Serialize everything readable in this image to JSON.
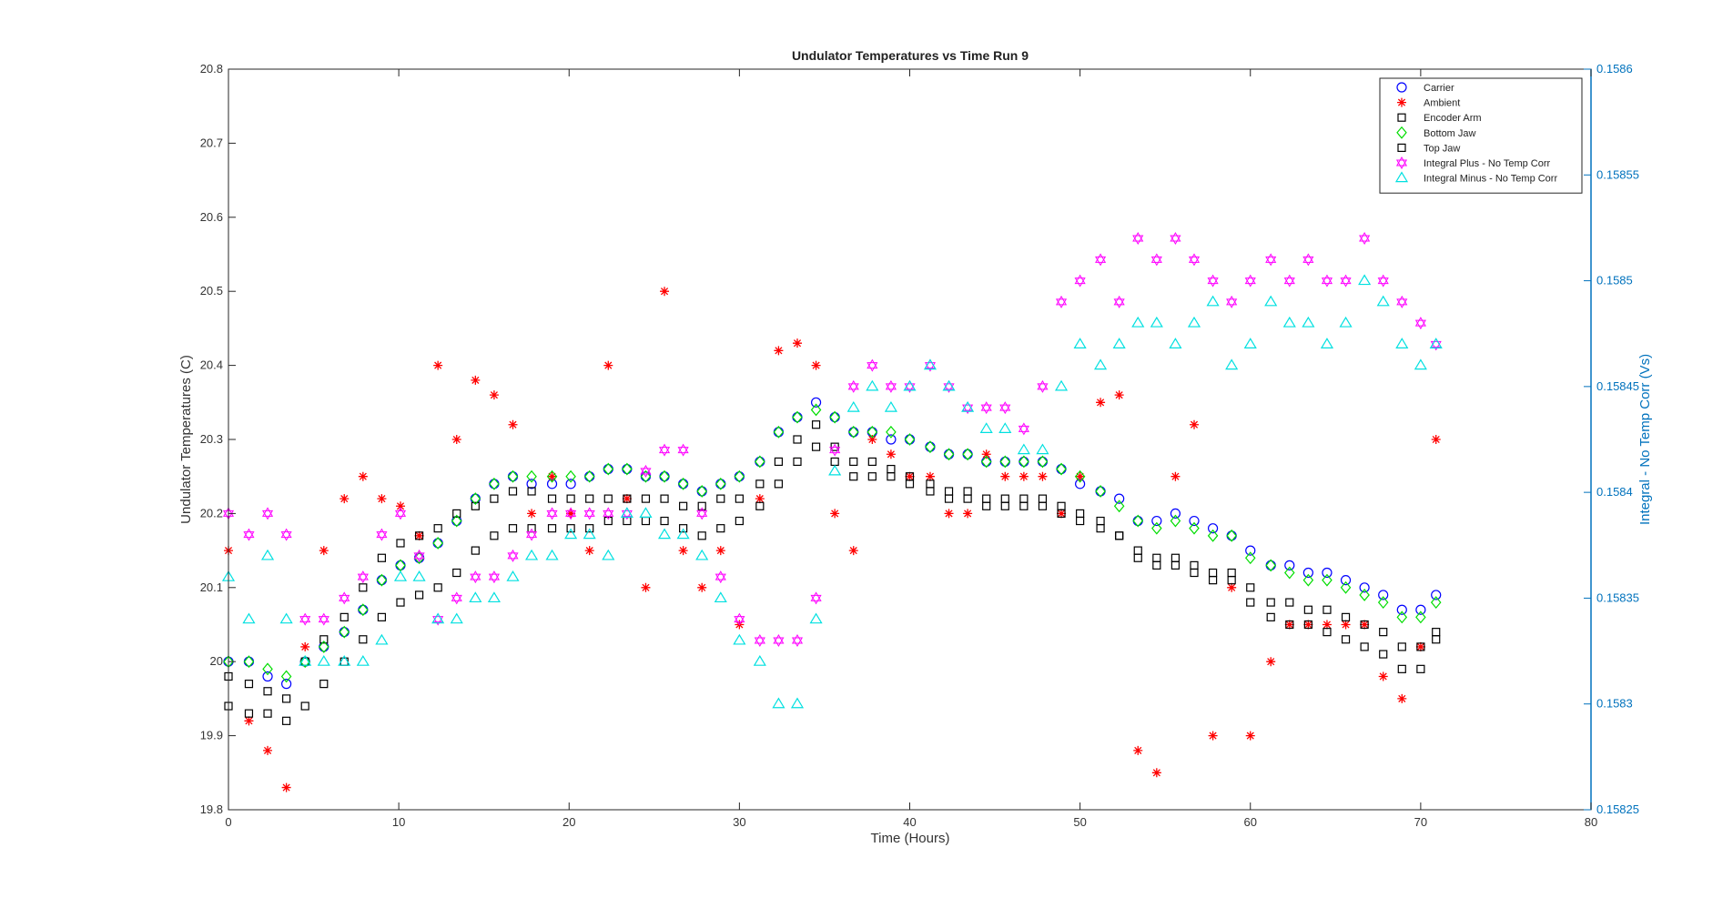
{
  "chart_data": {
    "type": "scatter",
    "title": "Undulator Temperatures vs Time Run 9",
    "xlabel": "Time (Hours)",
    "ylabel": "Undulator Temperatures (C)",
    "ylabel_right": "Integral -  No Temp Corr (Vs)",
    "xlim": [
      0,
      80
    ],
    "ylim": [
      19.8,
      20.8
    ],
    "ylim_right": [
      0.15825,
      0.1586
    ],
    "xticks": [
      "0",
      "10",
      "20",
      "30",
      "40",
      "50",
      "60",
      "70",
      "80"
    ],
    "yticks": [
      "19.8",
      "19.9",
      "20",
      "20.1",
      "20.2",
      "20.3",
      "20.4",
      "20.5",
      "20.6",
      "20.7",
      "20.8"
    ],
    "yticks_right": [
      "0.15825",
      "0.1583",
      "0.15835",
      "0.1584",
      "0.15845",
      "0.1585",
      "0.15855",
      "0.1586"
    ],
    "legend_position": "top-right",
    "grid": false,
    "series": [
      {
        "name": "Carrier",
        "marker": "circle",
        "color": "#0000FF",
        "axis": "left",
        "x": [
          0,
          1.2,
          2.3,
          3.4,
          4.5,
          5.6,
          6.8,
          7.9,
          9.0,
          10.1,
          11.2,
          12.3,
          13.4,
          14.5,
          15.6,
          16.7,
          17.8,
          19.0,
          20.1,
          21.2,
          22.3,
          23.4,
          24.5,
          25.6,
          26.7,
          27.8,
          28.9,
          30.0,
          31.2,
          32.3,
          33.4,
          34.5,
          35.6,
          36.7,
          37.8,
          38.9,
          40.0,
          41.2,
          42.3,
          43.4,
          44.5,
          45.6,
          46.7,
          47.8,
          48.9,
          50.0,
          51.2,
          52.3,
          53.4,
          54.5,
          55.6,
          56.7,
          57.8,
          58.9,
          60.0,
          61.2,
          62.3,
          63.4,
          64.5,
          65.6,
          66.7,
          67.8,
          68.9,
          70.0,
          70.9
        ],
        "y": [
          20.0,
          20.0,
          19.98,
          19.97,
          20.0,
          20.02,
          20.04,
          20.07,
          20.11,
          20.13,
          20.14,
          20.16,
          20.19,
          20.22,
          20.24,
          20.25,
          20.24,
          20.24,
          20.24,
          20.25,
          20.26,
          20.26,
          20.25,
          20.25,
          20.24,
          20.23,
          20.24,
          20.25,
          20.27,
          20.31,
          20.33,
          20.35,
          20.33,
          20.31,
          20.31,
          20.3,
          20.3,
          20.29,
          20.28,
          20.28,
          20.27,
          20.27,
          20.27,
          20.27,
          20.26,
          20.24,
          20.23,
          20.22,
          20.19,
          20.19,
          20.2,
          20.19,
          20.18,
          20.17,
          20.15,
          20.13,
          20.13,
          20.12,
          20.12,
          20.11,
          20.1,
          20.09,
          20.07,
          20.07,
          20.09
        ]
      },
      {
        "name": "Ambient",
        "marker": "star",
        "color": "#FF0000",
        "axis": "left",
        "x": [
          0,
          1.2,
          2.3,
          3.4,
          4.5,
          5.6,
          6.8,
          7.9,
          9.0,
          10.1,
          11.2,
          12.3,
          13.4,
          14.5,
          15.6,
          16.7,
          17.8,
          19.0,
          20.1,
          21.2,
          22.3,
          23.4,
          24.5,
          25.6,
          26.7,
          27.8,
          28.9,
          30.0,
          31.2,
          32.3,
          33.4,
          34.5,
          35.6,
          36.7,
          37.8,
          38.9,
          40.0,
          41.2,
          42.3,
          43.4,
          44.5,
          45.6,
          46.7,
          47.8,
          48.9,
          50.0,
          51.2,
          52.3,
          53.4,
          54.5,
          55.6,
          56.7,
          57.8,
          58.9,
          60.0,
          61.2,
          62.3,
          63.4,
          64.5,
          65.6,
          66.7,
          67.8,
          68.9,
          70.0,
          70.9
        ],
        "y": [
          20.15,
          19.92,
          19.88,
          19.83,
          20.02,
          20.15,
          20.22,
          20.25,
          20.22,
          20.21,
          20.17,
          20.4,
          20.3,
          20.38,
          20.36,
          20.32,
          20.2,
          20.25,
          20.2,
          20.15,
          20.4,
          20.22,
          20.1,
          20.5,
          20.15,
          20.1,
          20.15,
          20.05,
          20.22,
          20.42,
          20.43,
          20.4,
          20.2,
          20.15,
          20.3,
          20.28,
          20.25,
          20.25,
          20.2,
          20.2,
          20.28,
          20.25,
          20.25,
          20.25,
          20.2,
          20.25,
          20.35,
          20.36,
          19.88,
          19.85,
          20.25,
          20.32,
          19.9,
          20.1,
          19.9,
          20.0,
          20.05,
          20.05,
          20.05,
          20.05,
          20.05,
          19.98,
          19.95,
          20.02,
          20.3
        ]
      },
      {
        "name": "Encoder Arm",
        "marker": "square",
        "color": "#000000",
        "axis": "left",
        "x": [
          0,
          1.2,
          2.3,
          3.4,
          4.5,
          5.6,
          6.8,
          7.9,
          9.0,
          10.1,
          11.2,
          12.3,
          13.4,
          14.5,
          15.6,
          16.7,
          17.8,
          19.0,
          20.1,
          21.2,
          22.3,
          23.4,
          24.5,
          25.6,
          26.7,
          27.8,
          28.9,
          30.0,
          31.2,
          32.3,
          33.4,
          34.5,
          35.6,
          36.7,
          37.8,
          38.9,
          40.0,
          41.2,
          42.3,
          43.4,
          44.5,
          45.6,
          46.7,
          47.8,
          48.9,
          50.0,
          51.2,
          52.3,
          53.4,
          54.5,
          55.6,
          56.7,
          57.8,
          58.9,
          60.0,
          61.2,
          62.3,
          63.4,
          64.5,
          65.6,
          66.7,
          67.8,
          68.9,
          70.0,
          70.9
        ],
        "y": [
          19.98,
          19.97,
          19.96,
          19.95,
          20.0,
          20.03,
          20.06,
          20.1,
          20.14,
          20.16,
          20.17,
          20.18,
          20.2,
          20.21,
          20.22,
          20.23,
          20.23,
          20.22,
          20.22,
          20.22,
          20.22,
          20.22,
          20.22,
          20.22,
          20.21,
          20.21,
          20.22,
          20.22,
          20.24,
          20.27,
          20.3,
          20.32,
          20.29,
          20.27,
          20.27,
          20.26,
          20.25,
          20.24,
          20.23,
          20.23,
          20.22,
          20.22,
          20.22,
          20.22,
          20.21,
          20.2,
          20.19,
          20.17,
          20.15,
          20.14,
          20.14,
          20.13,
          20.12,
          20.12,
          20.1,
          20.08,
          20.08,
          20.07,
          20.07,
          20.06,
          20.05,
          20.04,
          20.02,
          20.02,
          20.04
        ]
      },
      {
        "name": "Bottom Jaw",
        "marker": "diamond",
        "color": "#00DD00",
        "axis": "left",
        "x": [
          0,
          1.2,
          2.3,
          3.4,
          4.5,
          5.6,
          6.8,
          7.9,
          9.0,
          10.1,
          11.2,
          12.3,
          13.4,
          14.5,
          15.6,
          16.7,
          17.8,
          19.0,
          20.1,
          21.2,
          22.3,
          23.4,
          24.5,
          25.6,
          26.7,
          27.8,
          28.9,
          30.0,
          31.2,
          32.3,
          33.4,
          34.5,
          35.6,
          36.7,
          37.8,
          38.9,
          40.0,
          41.2,
          42.3,
          43.4,
          44.5,
          45.6,
          46.7,
          47.8,
          48.9,
          50.0,
          51.2,
          52.3,
          53.4,
          54.5,
          55.6,
          56.7,
          57.8,
          58.9,
          60.0,
          61.2,
          62.3,
          63.4,
          64.5,
          65.6,
          66.7,
          67.8,
          68.9,
          70.0,
          70.9
        ],
        "y": [
          20.0,
          20.0,
          19.99,
          19.98,
          20.0,
          20.02,
          20.04,
          20.07,
          20.11,
          20.13,
          20.14,
          20.16,
          20.19,
          20.22,
          20.24,
          20.25,
          20.25,
          20.25,
          20.25,
          20.25,
          20.26,
          20.26,
          20.25,
          20.25,
          20.24,
          20.23,
          20.24,
          20.25,
          20.27,
          20.31,
          20.33,
          20.34,
          20.33,
          20.31,
          20.31,
          20.31,
          20.3,
          20.29,
          20.28,
          20.28,
          20.27,
          20.27,
          20.27,
          20.27,
          20.26,
          20.25,
          20.23,
          20.21,
          20.19,
          20.18,
          20.19,
          20.18,
          20.17,
          20.17,
          20.14,
          20.13,
          20.12,
          20.11,
          20.11,
          20.1,
          20.09,
          20.08,
          20.06,
          20.06,
          20.08
        ]
      },
      {
        "name": "Top Jaw",
        "marker": "square",
        "color": "#000000",
        "axis": "left",
        "x": [
          0,
          1.2,
          2.3,
          3.4,
          4.5,
          5.6,
          6.8,
          7.9,
          9.0,
          10.1,
          11.2,
          12.3,
          13.4,
          14.5,
          15.6,
          16.7,
          17.8,
          19.0,
          20.1,
          21.2,
          22.3,
          23.4,
          24.5,
          25.6,
          26.7,
          27.8,
          28.9,
          30.0,
          31.2,
          32.3,
          33.4,
          34.5,
          35.6,
          36.7,
          37.8,
          38.9,
          40.0,
          41.2,
          42.3,
          43.4,
          44.5,
          45.6,
          46.7,
          47.8,
          48.9,
          50.0,
          51.2,
          52.3,
          53.4,
          54.5,
          55.6,
          56.7,
          57.8,
          58.9,
          60.0,
          61.2,
          62.3,
          63.4,
          64.5,
          65.6,
          66.7,
          67.8,
          68.9,
          70.0,
          70.9
        ],
        "y": [
          19.94,
          19.93,
          19.93,
          19.92,
          19.94,
          19.97,
          20.0,
          20.03,
          20.06,
          20.08,
          20.09,
          20.1,
          20.12,
          20.15,
          20.17,
          20.18,
          20.18,
          20.18,
          20.18,
          20.18,
          20.19,
          20.19,
          20.19,
          20.19,
          20.18,
          20.17,
          20.18,
          20.19,
          20.21,
          20.24,
          20.27,
          20.29,
          20.27,
          20.25,
          20.25,
          20.25,
          20.24,
          20.23,
          20.22,
          20.22,
          20.21,
          20.21,
          20.21,
          20.21,
          20.2,
          20.19,
          20.18,
          20.17,
          20.14,
          20.13,
          20.13,
          20.12,
          20.11,
          20.11,
          20.08,
          20.06,
          20.05,
          20.05,
          20.04,
          20.03,
          20.02,
          20.01,
          19.99,
          19.99,
          20.03
        ]
      },
      {
        "name": "Integral Plus -  No Temp Corr",
        "marker": "hexagram",
        "color": "#FF00FF",
        "axis": "right",
        "x": [
          0,
          1.2,
          2.3,
          3.4,
          4.5,
          5.6,
          6.8,
          7.9,
          9.0,
          10.1,
          11.2,
          12.3,
          13.4,
          14.5,
          15.6,
          16.7,
          17.8,
          19.0,
          20.1,
          21.2,
          22.3,
          23.4,
          24.5,
          25.6,
          26.7,
          27.8,
          28.9,
          30.0,
          31.2,
          32.3,
          33.4,
          34.5,
          35.6,
          36.7,
          37.8,
          38.9,
          40.0,
          41.2,
          42.3,
          43.4,
          44.5,
          45.6,
          46.7,
          47.8,
          48.9,
          50.0,
          51.2,
          52.3,
          53.4,
          54.5,
          55.6,
          56.7,
          57.8,
          58.9,
          60.0,
          61.2,
          62.3,
          63.4,
          64.5,
          65.6,
          66.7,
          67.8,
          68.9,
          70.0,
          70.9
        ],
        "y": [
          0.15839,
          0.15838,
          0.15839,
          0.15838,
          0.15834,
          0.15834,
          0.15835,
          0.15836,
          0.15838,
          0.15839,
          0.15837,
          0.15834,
          0.15835,
          0.15836,
          0.15836,
          0.15837,
          0.15838,
          0.15839,
          0.15839,
          0.15839,
          0.15839,
          0.15839,
          0.15841,
          0.15842,
          0.15842,
          0.15839,
          0.15836,
          0.15834,
          0.15833,
          0.15833,
          0.15833,
          0.15835,
          0.15842,
          0.15845,
          0.15846,
          0.15845,
          0.15845,
          0.15846,
          0.15845,
          0.15844,
          0.15844,
          0.15844,
          0.15843,
          0.15845,
          0.15849,
          0.1585,
          0.15851,
          0.15849,
          0.15852,
          0.15851,
          0.15852,
          0.15851,
          0.1585,
          0.15849,
          0.1585,
          0.15851,
          0.1585,
          0.15851,
          0.1585,
          0.1585,
          0.15852,
          0.1585,
          0.15849,
          0.15848,
          0.15847
        ]
      },
      {
        "name": "Integral Minus -  No Temp Corr",
        "marker": "triangle",
        "color": "#00E0E0",
        "axis": "right",
        "x": [
          0,
          1.2,
          2.3,
          3.4,
          4.5,
          5.6,
          6.8,
          7.9,
          9.0,
          10.1,
          11.2,
          12.3,
          13.4,
          14.5,
          15.6,
          16.7,
          17.8,
          19.0,
          20.1,
          21.2,
          22.3,
          23.4,
          24.5,
          25.6,
          26.7,
          27.8,
          28.9,
          30.0,
          31.2,
          32.3,
          33.4,
          34.5,
          35.6,
          36.7,
          37.8,
          38.9,
          40.0,
          41.2,
          42.3,
          43.4,
          44.5,
          45.6,
          46.7,
          47.8,
          48.9,
          50.0,
          51.2,
          52.3,
          53.4,
          54.5,
          55.6,
          56.7,
          57.8,
          58.9,
          60.0,
          61.2,
          62.3,
          63.4,
          64.5,
          65.6,
          66.7,
          67.8,
          68.9,
          70.0,
          70.9
        ],
        "y": [
          0.15836,
          0.15834,
          0.15837,
          0.15834,
          0.15832,
          0.15832,
          0.15832,
          0.15832,
          0.15833,
          0.15836,
          0.15836,
          0.15834,
          0.15834,
          0.15835,
          0.15835,
          0.15836,
          0.15837,
          0.15837,
          0.15838,
          0.15838,
          0.15837,
          0.15839,
          0.15839,
          0.15838,
          0.15838,
          0.15837,
          0.15835,
          0.15833,
          0.15832,
          0.1583,
          0.1583,
          0.15834,
          0.15841,
          0.15844,
          0.15845,
          0.15844,
          0.15845,
          0.15846,
          0.15845,
          0.15844,
          0.15843,
          0.15843,
          0.15842,
          0.15842,
          0.15845,
          0.15847,
          0.15846,
          0.15847,
          0.15848,
          0.15848,
          0.15847,
          0.15848,
          0.15849,
          0.15846,
          0.15847,
          0.15849,
          0.15848,
          0.15848,
          0.15847,
          0.15848,
          0.1585,
          0.15849,
          0.15847,
          0.15846,
          0.15847
        ]
      }
    ]
  }
}
